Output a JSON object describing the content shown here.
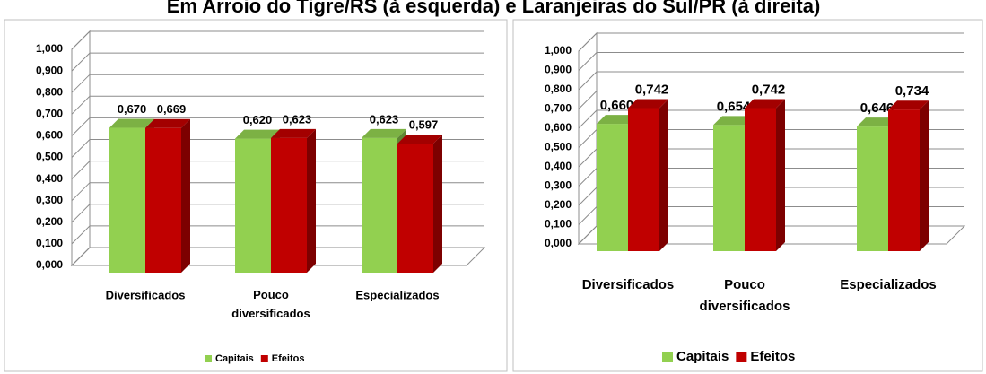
{
  "title": "Em Arroio do Tigre/RS (à esquerda) e Laranjeiras do Sul/PR (à direita)",
  "chart_data": [
    {
      "type": "bar3d",
      "categories": [
        "Diversificados",
        "Pouco diversificados",
        "Especializados"
      ],
      "series": [
        {
          "name": "Capitais",
          "color": "#92d050",
          "values": [
            0.67,
            0.62,
            0.623
          ],
          "value_labels": [
            "0,670",
            "0,620",
            "0,623"
          ]
        },
        {
          "name": "Efeitos",
          "color": "#c00000",
          "values": [
            0.669,
            0.623,
            0.597
          ],
          "value_labels": [
            "0,669",
            "0,623",
            "0,597"
          ]
        }
      ],
      "ylim": [
        0,
        1
      ],
      "yticks": [
        {
          "value": 0,
          "label": "0,000"
        },
        {
          "value": 0.1,
          "label": "0,100"
        },
        {
          "value": 0.2,
          "label": "0,200"
        },
        {
          "value": 0.3,
          "label": "0,300"
        },
        {
          "value": 0.4,
          "label": "0,400"
        },
        {
          "value": 0.5,
          "label": "0,500"
        },
        {
          "value": 0.6,
          "label": "0,600"
        },
        {
          "value": 0.7,
          "label": "0,700"
        },
        {
          "value": 0.8,
          "label": "0,800"
        },
        {
          "value": 0.9,
          "label": "0,900"
        },
        {
          "value": 1,
          "label": "1,000"
        }
      ],
      "grid": true,
      "legend": "bottom"
    },
    {
      "type": "bar3d",
      "categories": [
        "Diversificados",
        "Pouco diversificados",
        "Especializados"
      ],
      "series": [
        {
          "name": "Capitais",
          "color": "#92d050",
          "values": [
            0.66,
            0.654,
            0.646
          ],
          "value_labels": [
            "0,660",
            "0,654",
            "0,646"
          ]
        },
        {
          "name": "Efeitos",
          "color": "#c00000",
          "values": [
            0.742,
            0.742,
            0.734
          ],
          "value_labels": [
            "0,742",
            "0,742",
            "0,734"
          ]
        }
      ],
      "ylim": [
        0,
        1
      ],
      "yticks": [
        {
          "value": 0,
          "label": "0,000"
        },
        {
          "value": 0.1,
          "label": "0,100"
        },
        {
          "value": 0.2,
          "label": "0,200"
        },
        {
          "value": 0.3,
          "label": "0,300"
        },
        {
          "value": 0.4,
          "label": "0,400"
        },
        {
          "value": 0.5,
          "label": "0,500"
        },
        {
          "value": 0.6,
          "label": "0,600"
        },
        {
          "value": 0.7,
          "label": "0,700"
        },
        {
          "value": 0.8,
          "label": "0,800"
        },
        {
          "value": 0.9,
          "label": "0,900"
        },
        {
          "value": 1,
          "label": "1,000"
        }
      ],
      "grid": true,
      "legend": "bottom"
    }
  ]
}
